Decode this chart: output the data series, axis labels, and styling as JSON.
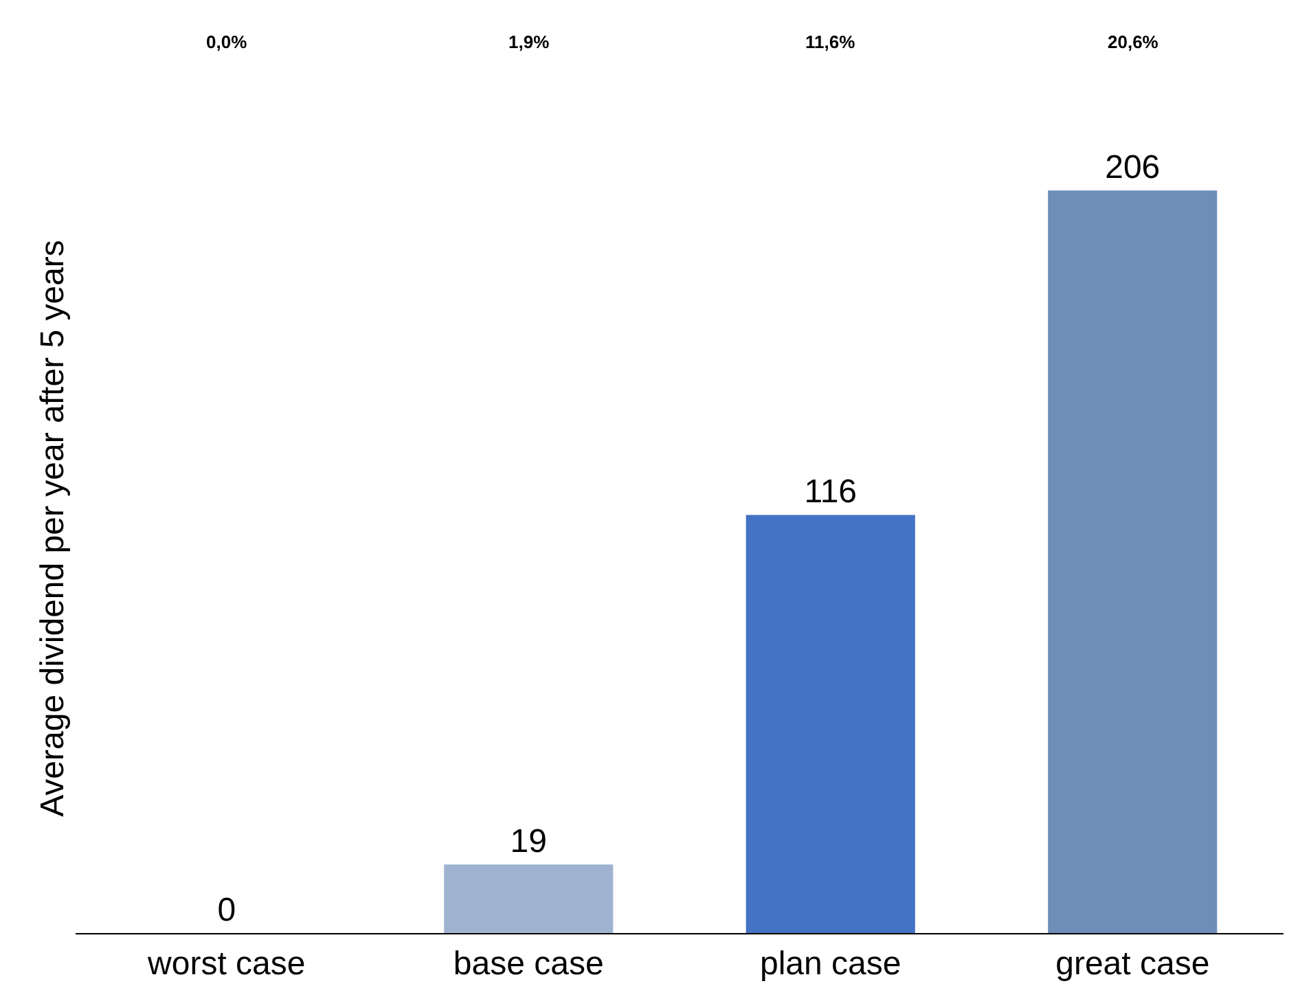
{
  "chart_data": {
    "type": "bar",
    "ylabel": "Average dividend per year after 5 years",
    "categories": [
      "worst case",
      "base case",
      "plan case",
      "great case"
    ],
    "values": [
      0,
      19,
      116,
      206
    ],
    "colors": [
      "#9fb3d1",
      "#9fb3d1",
      "#4472c4",
      "#6e8eb9"
    ],
    "data_labels": true,
    "annotations": [
      "0,0%",
      "1,9%",
      "11,6%",
      "20,6%"
    ]
  }
}
